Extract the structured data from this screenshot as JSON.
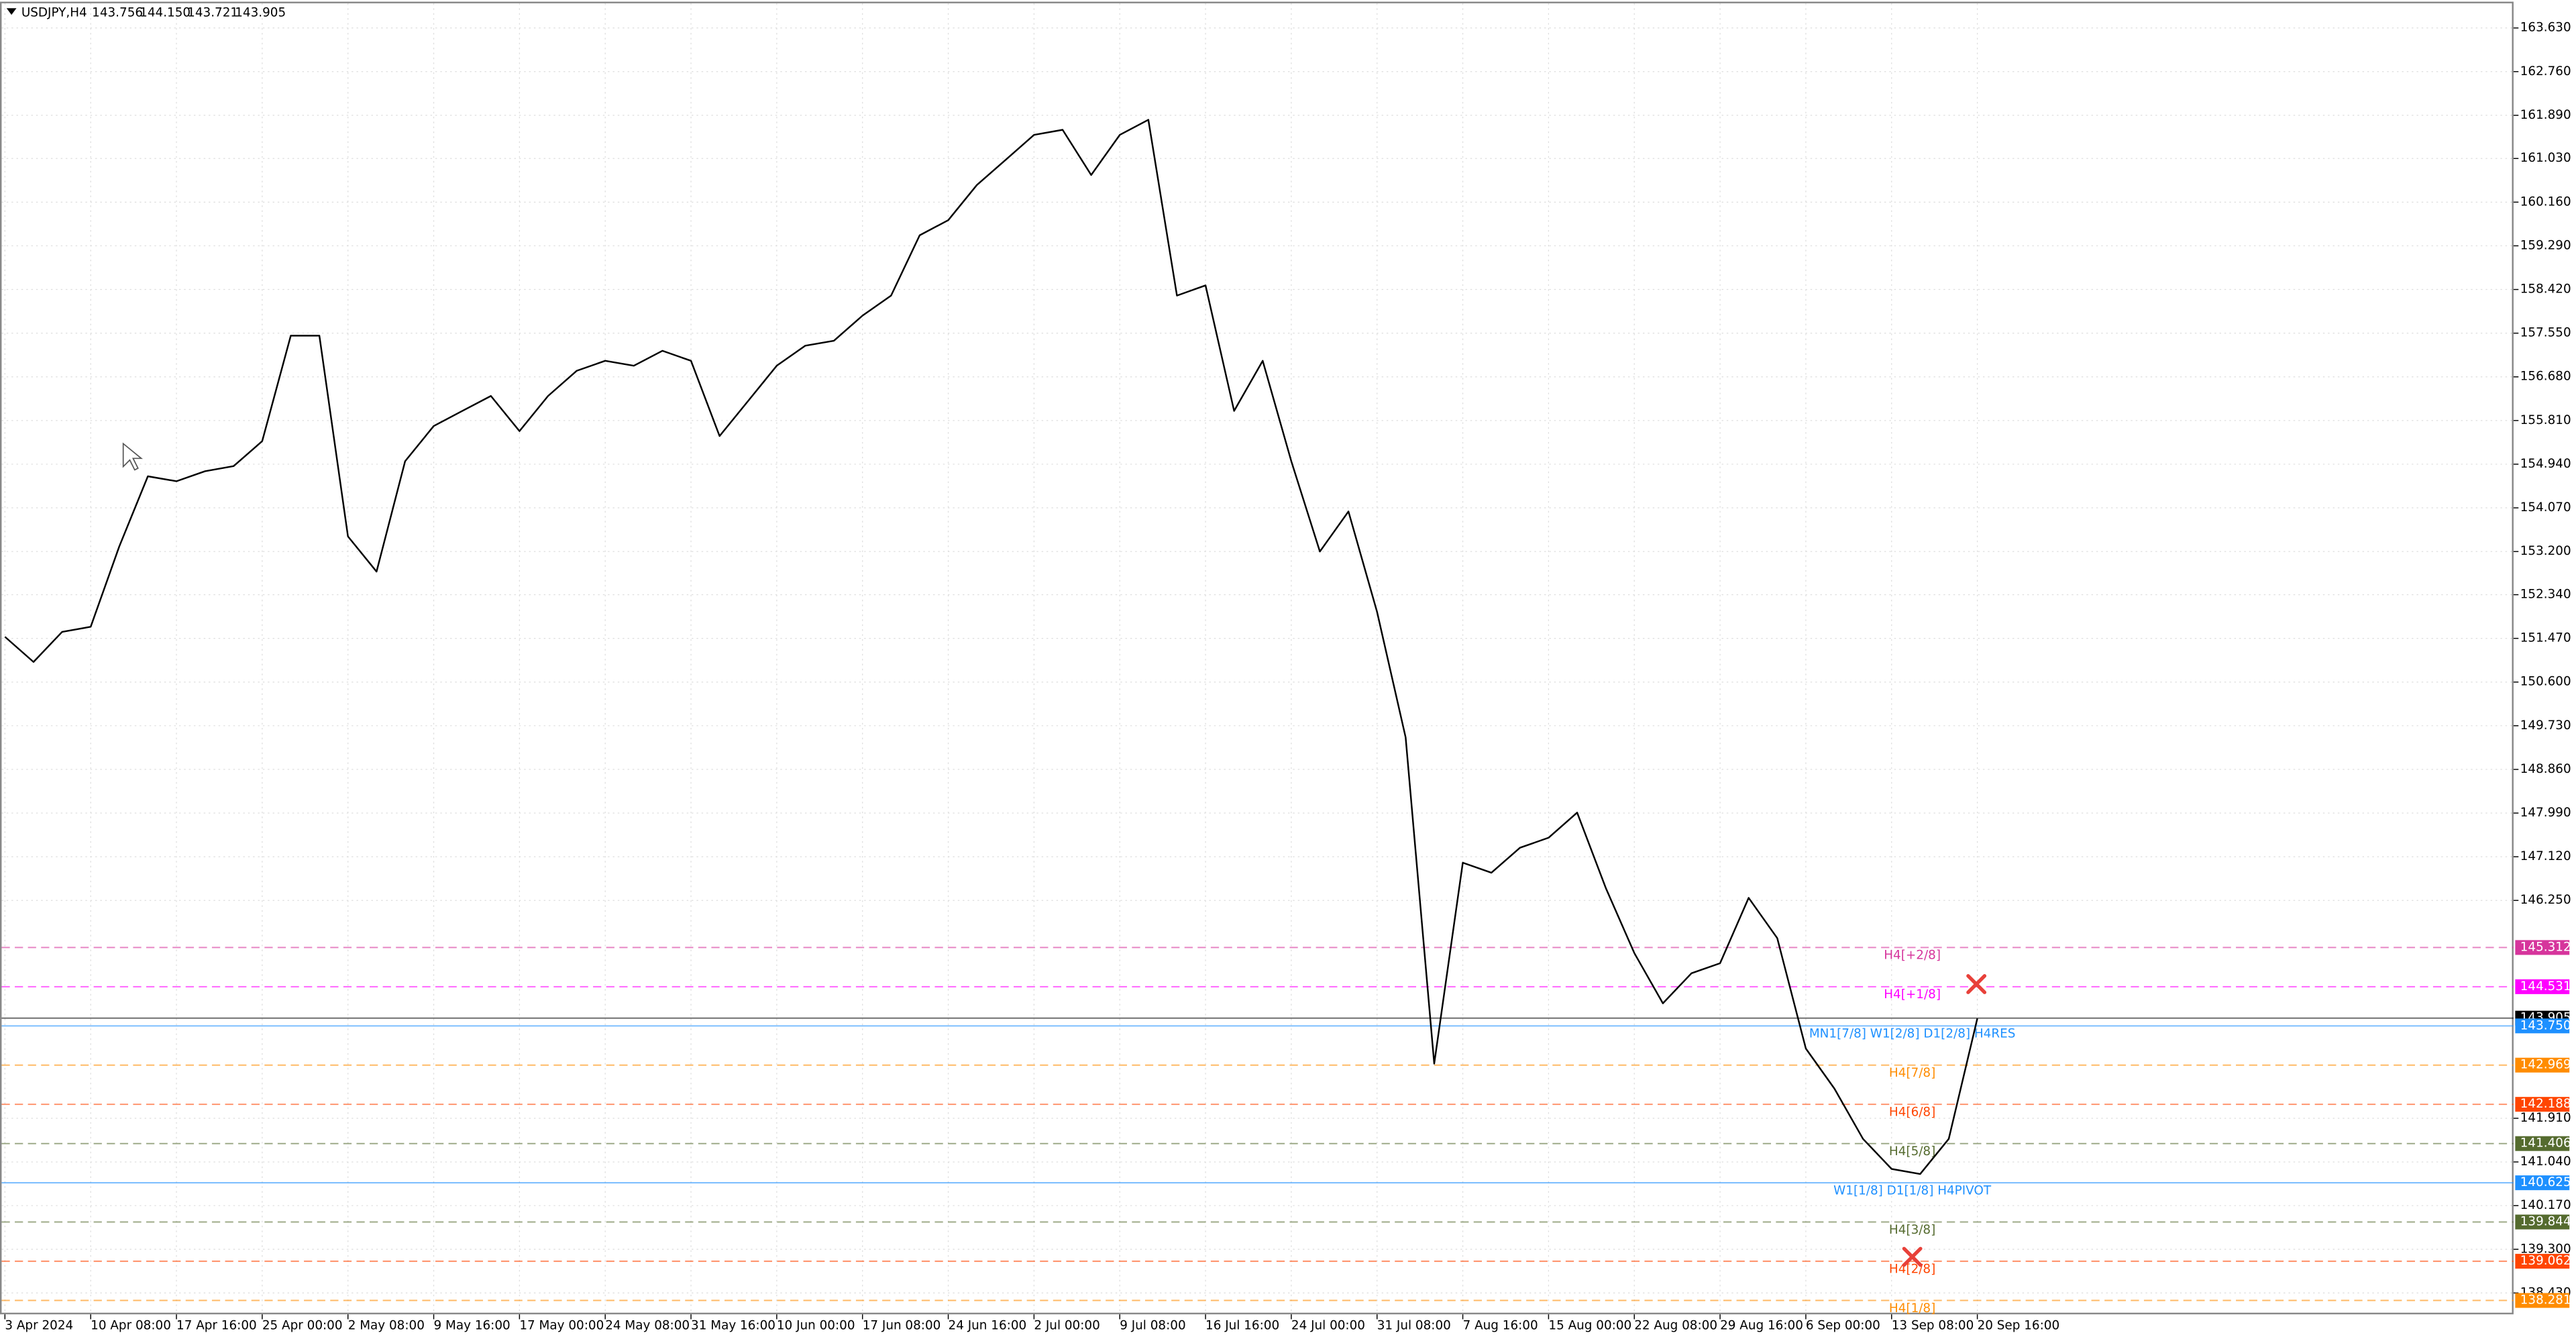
{
  "header": {
    "symbol": "USDJPY,H4",
    "open": "143.756",
    "high": "144.150",
    "low": "143.721",
    "close": "143.905"
  },
  "chart_data": {
    "type": "line",
    "categories": [
      "3 Apr 2024",
      null,
      null,
      "10 Apr 08:00",
      null,
      null,
      "17 Apr 16:00",
      null,
      null,
      "25 Apr 00:00",
      null,
      null,
      "2 May 08:00",
      null,
      null,
      "9 May 16:00",
      null,
      null,
      "17 May 00:00",
      null,
      null,
      "24 May 08:00",
      null,
      null,
      "31 May 16:00",
      null,
      null,
      "10 Jun 00:00",
      null,
      null,
      "17 Jun 08:00",
      null,
      null,
      "24 Jun 16:00",
      null,
      null,
      "2 Jul 00:00",
      null,
      null,
      "9 Jul 08:00",
      null,
      null,
      "16 Jul 16:00",
      null,
      null,
      "24 Jul 00:00",
      null,
      null,
      "31 Jul 08:00",
      null,
      null,
      "7 Aug 16:00",
      null,
      null,
      "15 Aug 00:00",
      null,
      null,
      "22 Aug 08:00",
      null,
      null,
      "29 Aug 16:00",
      null,
      null,
      "6 Sep 00:00",
      null,
      null,
      "13 Sep 08:00",
      null,
      null,
      "20 Sep 16:00"
    ],
    "values": [
      151.5,
      151.0,
      151.6,
      151.7,
      153.3,
      154.7,
      154.6,
      154.8,
      154.9,
      155.4,
      157.5,
      157.5,
      153.5,
      152.8,
      155.0,
      155.7,
      156.0,
      156.3,
      155.6,
      156.3,
      156.8,
      157.0,
      156.9,
      157.2,
      157.0,
      155.5,
      156.2,
      156.9,
      157.3,
      157.4,
      157.9,
      158.3,
      159.5,
      159.8,
      160.5,
      161.0,
      161.5,
      161.6,
      160.7,
      161.5,
      161.8,
      158.3,
      158.5,
      156.0,
      157.0,
      155.0,
      153.2,
      154.0,
      152.0,
      149.5,
      143.0,
      147.0,
      146.8,
      147.3,
      147.5,
      148.0,
      146.5,
      145.2,
      144.2,
      144.8,
      145.0,
      146.3,
      145.5,
      143.3,
      142.5,
      141.5,
      140.9,
      140.8,
      141.5,
      143.9
    ],
    "color": "#000000",
    "ylim": [
      138.43,
      163.63
    ],
    "yticks": [
      {
        "value": 163.63,
        "label": "163.630"
      },
      {
        "value": 162.76,
        "label": "162.760"
      },
      {
        "value": 161.89,
        "label": "161.890"
      },
      {
        "value": 161.03,
        "label": "161.030"
      },
      {
        "value": 160.16,
        "label": "160.160"
      },
      {
        "value": 159.29,
        "label": "159.290"
      },
      {
        "value": 158.42,
        "label": "158.420"
      },
      {
        "value": 157.55,
        "label": "157.550"
      },
      {
        "value": 156.68,
        "label": "156.680"
      },
      {
        "value": 155.81,
        "label": "155.810"
      },
      {
        "value": 154.94,
        "label": "154.940"
      },
      {
        "value": 154.07,
        "label": "154.070"
      },
      {
        "value": 153.2,
        "label": "153.200"
      },
      {
        "value": 152.34,
        "label": "152.340"
      },
      {
        "value": 151.47,
        "label": "151.470"
      },
      {
        "value": 150.6,
        "label": "150.600"
      },
      {
        "value": 149.73,
        "label": "149.730"
      },
      {
        "value": 148.86,
        "label": "148.860"
      },
      {
        "value": 147.99,
        "label": "147.990"
      },
      {
        "value": 147.12,
        "label": "147.120"
      },
      {
        "value": 146.25,
        "label": "146.250"
      },
      {
        "value": 141.91,
        "label": "141.910"
      },
      {
        "value": 141.04,
        "label": "141.040"
      },
      {
        "value": 140.17,
        "label": "140.170"
      },
      {
        "value": 139.3,
        "label": "139.300"
      },
      {
        "value": 138.43,
        "label": "138.430"
      }
    ],
    "grid": true,
    "levels": [
      {
        "label": "H4[+2/8]",
        "value": 145.312,
        "color": "#d6359c",
        "dashed": true
      },
      {
        "label": "H4[+1/8]",
        "value": 144.531,
        "color": "#ff00ff",
        "dashed": true
      },
      {
        "value": 143.905,
        "color": "#000000",
        "dashed": false
      },
      {
        "label": "MN1[7/8] W1[2/8] D1[2/8] H4RES",
        "value": 143.75,
        "value_label": "143.750",
        "color": "#1e90ff",
        "dashed": false
      },
      {
        "label": "H4[7/8]",
        "value": 142.969,
        "color": "#ff8c00",
        "dashed": true
      },
      {
        "label": "H4[6/8]",
        "value": 142.188,
        "color": "#ff4500",
        "dashed": true
      },
      {
        "label": "H4[5/8]",
        "value": 141.406,
        "color": "#556b2f",
        "dashed": true
      },
      {
        "label": "W1[1/8] D1[1/8] H4PIVOT",
        "value": 140.625,
        "color": "#1e90ff",
        "dashed": false
      },
      {
        "label": "H4[3/8]",
        "value": 139.844,
        "color": "#556b2f",
        "dashed": true
      },
      {
        "label": "H4[2/8]",
        "value": 139.062,
        "color": "#ff4500",
        "dashed": true
      },
      {
        "label": "H4[1/8]",
        "value": 138.281,
        "color": "#ff8c00",
        "dashed": true
      }
    ]
  }
}
